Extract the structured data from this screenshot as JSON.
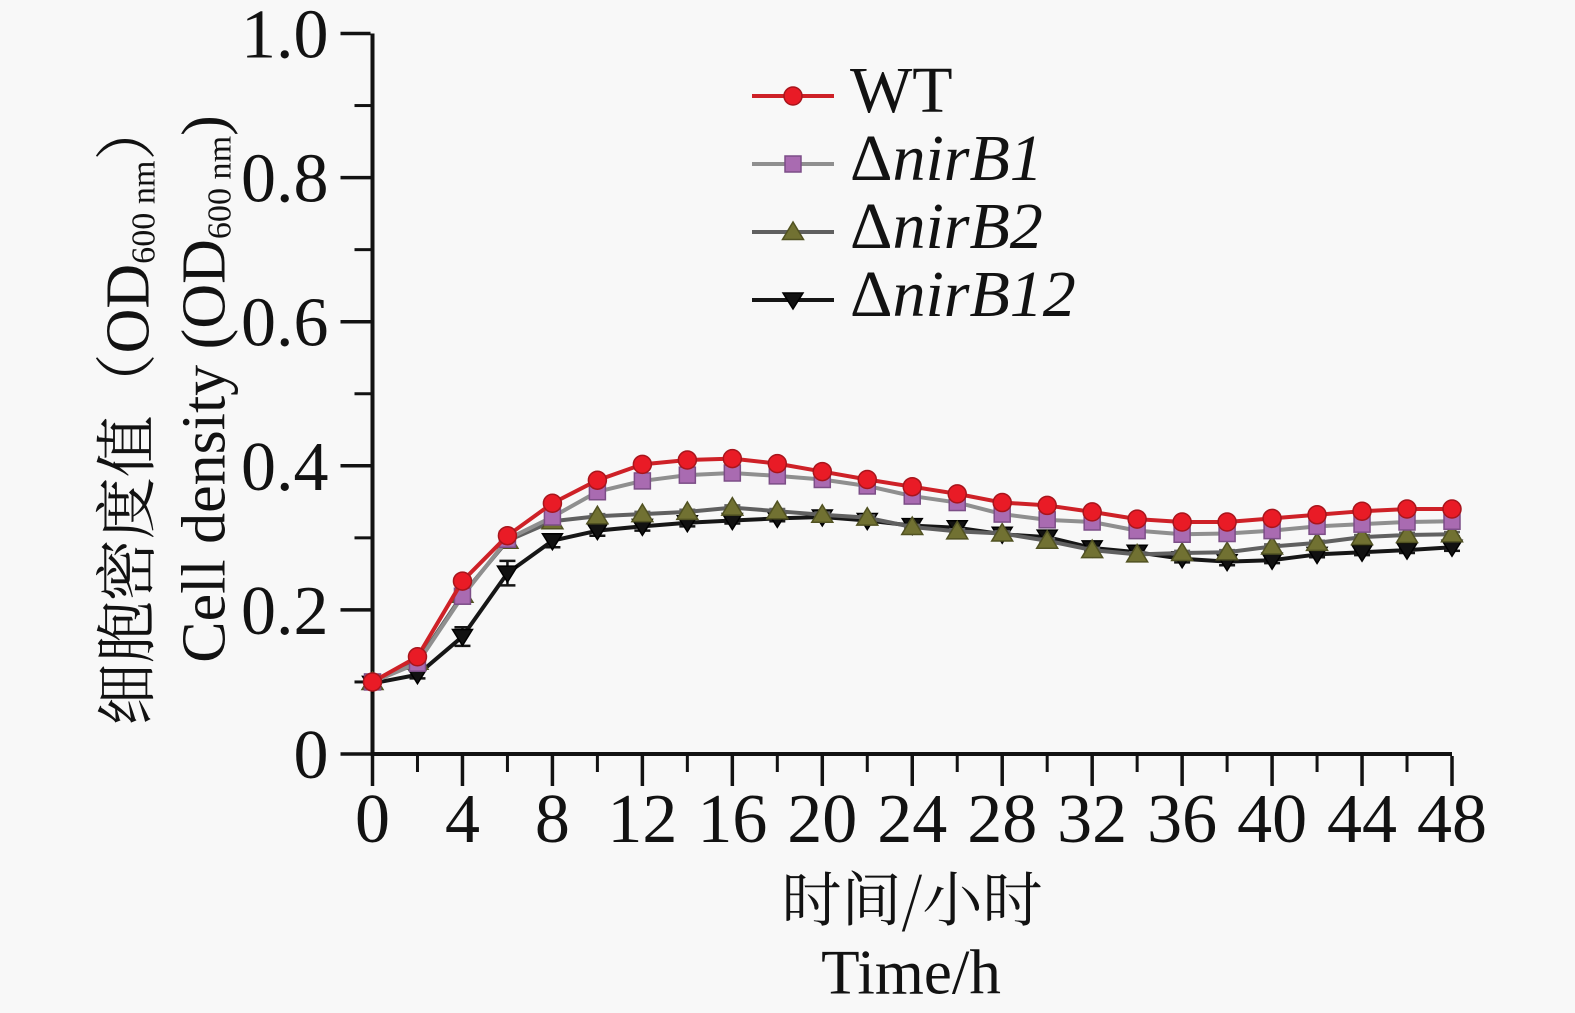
{
  "figure": {
    "background": "#f8f8f8",
    "text_color": "#121212"
  },
  "axes": {
    "y_label_zh": {
      "pre": "细胞密度值（OD",
      "sub": "600 nm",
      "post": "）"
    },
    "y_label_en": {
      "pre": "Cell density (OD",
      "sub": "600 nm",
      "post": ")"
    },
    "x_label_zh": "时间/小时",
    "x_label_en": "Time/h"
  },
  "legend": {
    "items": [
      {
        "upright": "WT",
        "italic": ""
      },
      {
        "upright": "Δ",
        "italic": "nirB1"
      },
      {
        "upright": "Δ",
        "italic": "nirB2"
      },
      {
        "upright": "Δ",
        "italic": "nirB12"
      }
    ]
  },
  "chart_data": {
    "type": "line",
    "title": "",
    "xlabel": "时间/小时 Time/h",
    "ylabel": "细胞密度值（OD600 nm） Cell density (OD600 nm)",
    "xlim": [
      0,
      48
    ],
    "ylim": [
      0,
      1.0
    ],
    "x_tick_labels": [
      "0",
      "4",
      "8",
      "12",
      "16",
      "20",
      "24",
      "28",
      "32",
      "36",
      "40",
      "44",
      "48"
    ],
    "x_major_ticks": [
      0,
      4,
      8,
      12,
      16,
      20,
      24,
      28,
      32,
      36,
      40,
      44,
      48
    ],
    "x_minor_ticks": [
      2,
      6,
      10,
      14,
      18,
      22,
      26,
      30,
      34,
      38,
      42,
      46
    ],
    "y_tick_labels": [
      "0",
      "0.2",
      "0.4",
      "0.6",
      "0.8",
      "1.0"
    ],
    "y_major_ticks": [
      0,
      0.2,
      0.4,
      0.6,
      0.8,
      1.0
    ],
    "y_minor_ticks": [
      0.1,
      0.3,
      0.5,
      0.7,
      0.9
    ],
    "grid": false,
    "legend_position": "upper-right-inside",
    "x": [
      0,
      2,
      4,
      6,
      8,
      10,
      12,
      14,
      16,
      18,
      20,
      22,
      24,
      26,
      28,
      30,
      32,
      34,
      36,
      38,
      40,
      42,
      44,
      46,
      48
    ],
    "series": [
      {
        "name": "WT",
        "marker": "circle",
        "line_color": "#ce2127",
        "marker_color": "#e91b26",
        "marker_edge": "#a8151c",
        "values": [
          0.1,
          0.135,
          0.24,
          0.303,
          0.348,
          0.38,
          0.402,
          0.408,
          0.41,
          0.403,
          0.392,
          0.381,
          0.371,
          0.361,
          0.349,
          0.345,
          0.336,
          0.326,
          0.322,
          0.322,
          0.327,
          0.332,
          0.337,
          0.34,
          0.34
        ],
        "errors": [
          0.003,
          0.003,
          0.004,
          0.004,
          0.003,
          0.003,
          0.003,
          0.003,
          0.003,
          0.003,
          0.003,
          0.003,
          0.003,
          0.003,
          0.003,
          0.003,
          0.003,
          0.003,
          0.003,
          0.003,
          0.003,
          0.003,
          0.003,
          0.003,
          0.003
        ]
      },
      {
        "name": "ΔnirB1",
        "marker": "square",
        "line_color": "#8f8f8f",
        "marker_color": "#a96bb1",
        "marker_edge": "#7c4e87",
        "values": [
          0.1,
          0.126,
          0.219,
          0.298,
          0.329,
          0.364,
          0.379,
          0.387,
          0.39,
          0.386,
          0.381,
          0.372,
          0.358,
          0.349,
          0.333,
          0.325,
          0.322,
          0.31,
          0.305,
          0.306,
          0.31,
          0.316,
          0.319,
          0.322,
          0.323
        ],
        "errors": [
          0.003,
          0.003,
          0.004,
          0.004,
          0.003,
          0.003,
          0.003,
          0.003,
          0.003,
          0.003,
          0.003,
          0.003,
          0.003,
          0.003,
          0.003,
          0.003,
          0.003,
          0.003,
          0.003,
          0.003,
          0.003,
          0.003,
          0.003,
          0.003,
          0.003
        ]
      },
      {
        "name": "ΔnirB2",
        "marker": "triangle-up",
        "line_color": "#606060",
        "marker_color": "#717132",
        "marker_edge": "#515222",
        "values": [
          0.1,
          0.128,
          0.221,
          0.296,
          0.323,
          0.33,
          0.333,
          0.336,
          0.342,
          0.337,
          0.332,
          0.328,
          0.315,
          0.309,
          0.306,
          0.296,
          0.283,
          0.277,
          0.279,
          0.28,
          0.288,
          0.293,
          0.301,
          0.304,
          0.305
        ],
        "errors": [
          0.003,
          0.003,
          0.004,
          0.004,
          0.003,
          0.003,
          0.003,
          0.003,
          0.003,
          0.003,
          0.003,
          0.003,
          0.003,
          0.003,
          0.003,
          0.003,
          0.003,
          0.003,
          0.003,
          0.003,
          0.003,
          0.003,
          0.003,
          0.003,
          0.003
        ]
      },
      {
        "name": "ΔnirB12",
        "marker": "triangle-down",
        "line_color": "#161616",
        "marker_color": "#111111",
        "marker_edge": "#000000",
        "values": [
          0.098,
          0.11,
          0.163,
          0.251,
          0.296,
          0.31,
          0.316,
          0.321,
          0.324,
          0.327,
          0.329,
          0.324,
          0.317,
          0.314,
          0.305,
          0.301,
          0.286,
          0.28,
          0.271,
          0.267,
          0.269,
          0.277,
          0.28,
          0.283,
          0.287
        ],
        "errors": [
          0.004,
          0.005,
          0.013,
          0.017,
          0.009,
          0.007,
          0.006,
          0.005,
          0.004,
          0.004,
          0.004,
          0.004,
          0.004,
          0.004,
          0.004,
          0.004,
          0.004,
          0.004,
          0.005,
          0.005,
          0.004,
          0.004,
          0.004,
          0.004,
          0.005
        ]
      }
    ]
  }
}
